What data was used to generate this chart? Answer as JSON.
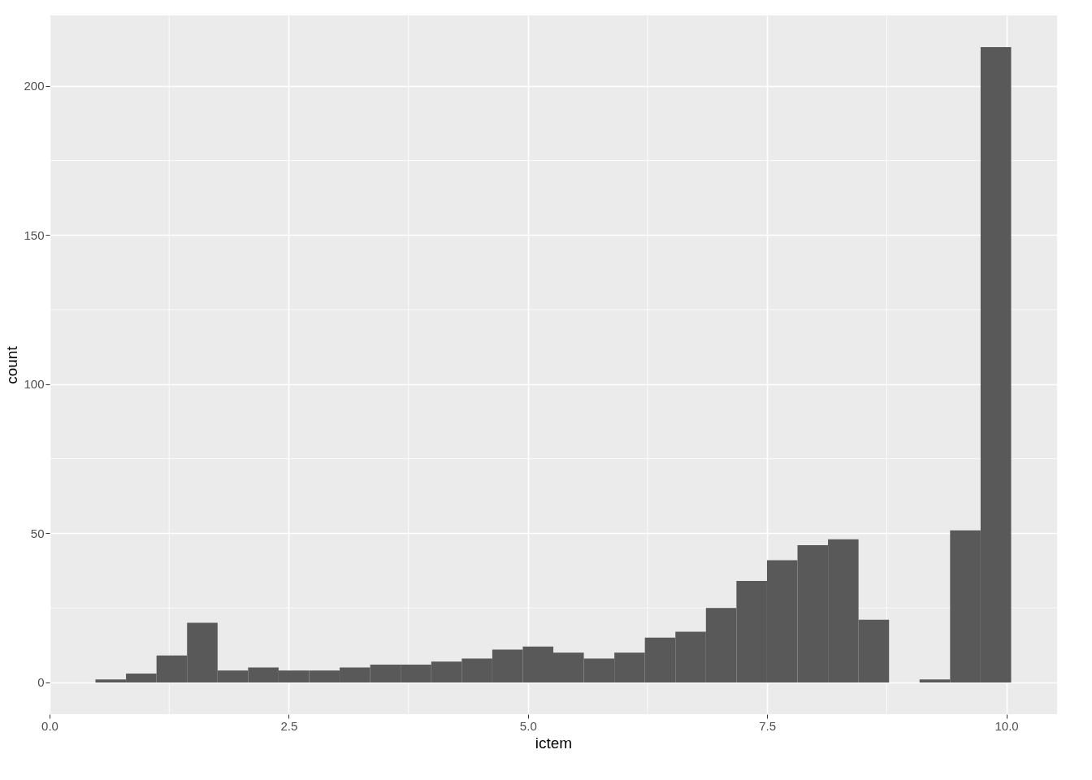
{
  "chart_data": {
    "type": "histogram",
    "xlabel": "ictem",
    "ylabel": "count",
    "color": "#595959",
    "bins": [
      0.48,
      0.799,
      1.118,
      1.437,
      1.756,
      2.075,
      2.394,
      2.713,
      3.032,
      3.351,
      3.67,
      3.989,
      4.308,
      4.627,
      4.946,
      5.265,
      5.584,
      5.903,
      6.222,
      6.541,
      6.86,
      7.179,
      7.498,
      7.817,
      8.136,
      8.455,
      8.774,
      9.093,
      9.412,
      9.731,
      10.05
    ],
    "values": [
      1,
      3,
      9,
      20,
      4,
      5,
      4,
      4,
      5,
      6,
      6,
      7,
      8,
      11,
      12,
      10,
      8,
      10,
      15,
      17,
      25,
      34,
      41,
      46,
      48,
      21,
      0,
      1,
      51,
      213
    ],
    "xlim": [
      0,
      10.53
    ],
    "ylim": [
      -10.65,
      223.65
    ],
    "xticks": [
      {
        "value": 0,
        "label": "0.0"
      },
      2.5,
      {
        "value": 5,
        "label": "5.0"
      },
      7.5,
      {
        "value": 10,
        "label": "10.0"
      }
    ],
    "yticks": [
      0,
      50,
      100,
      150,
      200
    ],
    "grid": true
  }
}
